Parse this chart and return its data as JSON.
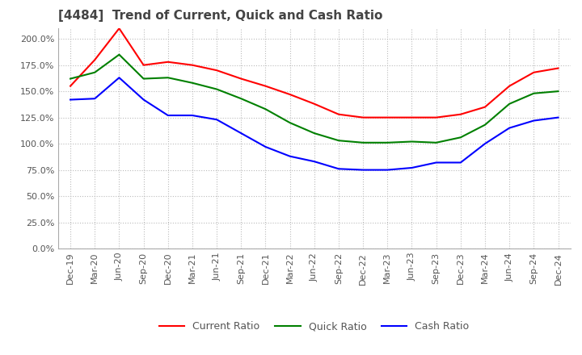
{
  "title": "[4484]  Trend of Current, Quick and Cash Ratio",
  "x_labels": [
    "Dec-19",
    "Mar-20",
    "Jun-20",
    "Sep-20",
    "Dec-20",
    "Mar-21",
    "Jun-21",
    "Sep-21",
    "Dec-21",
    "Mar-22",
    "Jun-22",
    "Sep-22",
    "Dec-22",
    "Mar-23",
    "Jun-23",
    "Sep-23",
    "Dec-23",
    "Mar-24",
    "Jun-24",
    "Sep-24",
    "Dec-24"
  ],
  "current_ratio": [
    1.55,
    1.8,
    2.1,
    1.75,
    1.78,
    1.75,
    1.7,
    1.62,
    1.55,
    1.47,
    1.38,
    1.28,
    1.25,
    1.25,
    1.25,
    1.25,
    1.28,
    1.35,
    1.55,
    1.68,
    1.72
  ],
  "quick_ratio": [
    1.62,
    1.68,
    1.85,
    1.62,
    1.63,
    1.58,
    1.52,
    1.43,
    1.33,
    1.2,
    1.1,
    1.03,
    1.01,
    1.01,
    1.02,
    1.01,
    1.06,
    1.18,
    1.38,
    1.48,
    1.5
  ],
  "cash_ratio": [
    1.42,
    1.43,
    1.63,
    1.42,
    1.27,
    1.27,
    1.23,
    1.1,
    0.97,
    0.88,
    0.83,
    0.76,
    0.75,
    0.75,
    0.77,
    0.82,
    0.82,
    1.0,
    1.15,
    1.22,
    1.25
  ],
  "current_color": "#ff0000",
  "quick_color": "#008000",
  "cash_color": "#0000ff",
  "line_width": 1.5,
  "background_color": "#ffffff",
  "grid_color": "#bbbbbb",
  "title_fontsize": 11,
  "tick_fontsize": 8,
  "legend_fontsize": 9
}
